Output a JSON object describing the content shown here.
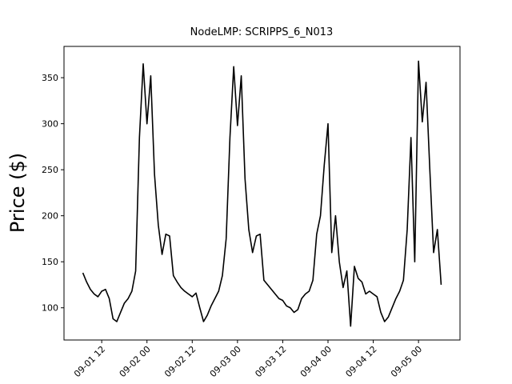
{
  "chart_data": {
    "type": "line",
    "title": "NodeLMP: SCRIPPS_6_N013",
    "y_label": "Price ($)",
    "x": [
      "09-01 07",
      "09-01 08",
      "09-01 09",
      "09-01 10",
      "09-01 11",
      "09-01 12",
      "09-01 13",
      "09-01 14",
      "09-01 15",
      "09-01 16",
      "09-01 17",
      "09-01 18",
      "09-01 19",
      "09-01 20",
      "09-01 21",
      "09-01 22",
      "09-01 23",
      "09-02 00",
      "09-02 01",
      "09-02 02",
      "09-02 03",
      "09-02 04",
      "09-02 05",
      "09-02 06",
      "09-02 07",
      "09-02 08",
      "09-02 09",
      "09-02 10",
      "09-02 11",
      "09-02 12",
      "09-02 13",
      "09-02 14",
      "09-02 15",
      "09-02 16",
      "09-02 17",
      "09-02 18",
      "09-02 19",
      "09-02 20",
      "09-02 21",
      "09-02 22",
      "09-02 23",
      "09-03 00",
      "09-03 01",
      "09-03 02",
      "09-03 03",
      "09-03 04",
      "09-03 05",
      "09-03 06",
      "09-03 07",
      "09-03 08",
      "09-03 09",
      "09-03 10",
      "09-03 11",
      "09-03 12",
      "09-03 13",
      "09-03 14",
      "09-03 15",
      "09-03 16",
      "09-03 17",
      "09-03 18",
      "09-03 19",
      "09-03 20",
      "09-03 21",
      "09-03 22",
      "09-03 23",
      "09-04 00",
      "09-04 01",
      "09-04 02",
      "09-04 03",
      "09-04 04",
      "09-04 05",
      "09-04 06",
      "09-04 07",
      "09-04 08",
      "09-04 09",
      "09-04 10",
      "09-04 11",
      "09-04 12",
      "09-04 13",
      "09-04 14",
      "09-04 15",
      "09-04 16",
      "09-04 17",
      "09-04 18",
      "09-04 19",
      "09-04 20",
      "09-04 21",
      "09-04 22",
      "09-04 23",
      "09-05 00",
      "09-05 01",
      "09-05 02",
      "09-05 03",
      "09-05 04",
      "09-05 05",
      "09-05 06"
    ],
    "series": [
      {
        "color": "#000000",
        "values": [
          138,
          128,
          120,
          115,
          112,
          118,
          120,
          110,
          88,
          85,
          95,
          105,
          110,
          118,
          140,
          285,
          365,
          300,
          352,
          245,
          190,
          158,
          180,
          178,
          135,
          128,
          122,
          118,
          115,
          112,
          116,
          100,
          85,
          92,
          102,
          110,
          118,
          135,
          175,
          285,
          362,
          298,
          352,
          240,
          185,
          160,
          178,
          180,
          130,
          125,
          120,
          115,
          110,
          108,
          102,
          100,
          95,
          98,
          110,
          115,
          118,
          130,
          180,
          200,
          255,
          300,
          160,
          200,
          150,
          122,
          140,
          80,
          145,
          132,
          128,
          115,
          118,
          115,
          112,
          95,
          85,
          90,
          100,
          110,
          118,
          130,
          185,
          285,
          150,
          368,
          302,
          345,
          250,
          160,
          185,
          125
        ]
      }
    ],
    "xlim": [
      "09-01 02",
      "09-05 11"
    ],
    "xticks": [
      "09-01 12",
      "09-02 00",
      "09-02 12",
      "09-03 00",
      "09-03 12",
      "09-04 00",
      "09-04 12",
      "09-05 00"
    ],
    "ylim": [
      65,
      384
    ],
    "yticks": [
      100,
      150,
      200,
      250,
      300,
      350
    ]
  }
}
